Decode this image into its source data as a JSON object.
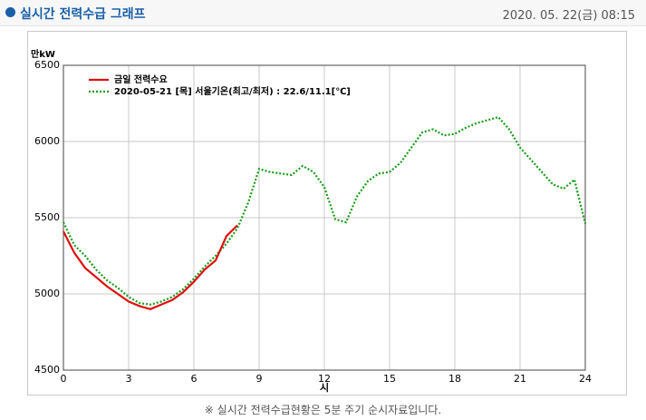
{
  "header": {
    "title": "실시간 전력수급 그래프",
    "datetime": "2020. 05. 22(금) 08:15"
  },
  "footnote": "※ 실시간 전력수급현황은 5분 주기 순시자료입니다.",
  "chart_data": {
    "type": "line",
    "y_label": "만kW",
    "x_label": "시",
    "x": [
      0,
      0.5,
      1,
      1.5,
      2,
      2.5,
      3,
      3.5,
      4,
      4.5,
      5,
      5.5,
      6,
      6.5,
      7,
      7.5,
      8,
      8.5,
      9,
      9.5,
      10,
      10.5,
      11,
      11.5,
      12,
      12.5,
      13,
      13.5,
      14,
      14.5,
      15,
      15.5,
      16,
      16.5,
      17,
      17.5,
      18,
      18.5,
      19,
      19.5,
      20,
      20.5,
      21,
      21.5,
      22,
      22.5,
      23,
      23.5,
      24
    ],
    "series": [
      {
        "name": "금일 전력수요",
        "color": "#e01010",
        "style": "solid",
        "values": [
          5410,
          5270,
          5170,
          5110,
          5050,
          5000,
          4950,
          4920,
          4900,
          4930,
          4960,
          5010,
          5080,
          5160,
          5220,
          5380,
          5450,
          null,
          null,
          null,
          null,
          null,
          null,
          null,
          null,
          null,
          null,
          null,
          null,
          null,
          null,
          null,
          null,
          null,
          null,
          null,
          null,
          null,
          null,
          null,
          null,
          null,
          null,
          null,
          null,
          null,
          null,
          null,
          null
        ]
      },
      {
        "name": "2020-05-21 [목] 서울기온(최고/최저) : 22.6/11.1[℃]",
        "color": "#1a9a1a",
        "style": "dotted",
        "values": [
          5470,
          5320,
          5250,
          5160,
          5090,
          5040,
          4980,
          4940,
          4930,
          4950,
          4980,
          5030,
          5100,
          5180,
          5250,
          5330,
          5430,
          5600,
          5820,
          5800,
          5790,
          5780,
          5840,
          5800,
          5700,
          5490,
          5470,
          5640,
          5740,
          5790,
          5800,
          5860,
          5960,
          6060,
          6080,
          6040,
          6050,
          6090,
          6120,
          6140,
          6160,
          6080,
          5960,
          5880,
          5800,
          5720,
          5690,
          5750,
          5460
        ]
      }
    ],
    "xlim": [
      0,
      24
    ],
    "xticks": [
      0,
      3,
      6,
      9,
      12,
      15,
      18,
      21,
      24
    ],
    "ylim": [
      4500,
      6500
    ],
    "yticks": [
      4500,
      5000,
      5500,
      6000,
      6500
    ],
    "grid": true
  }
}
